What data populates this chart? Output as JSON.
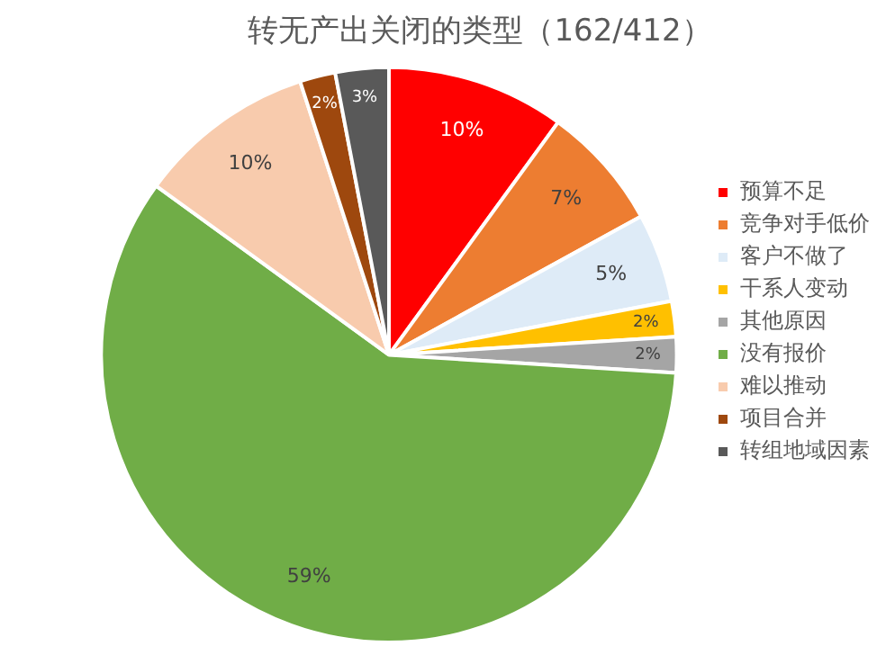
{
  "chart_data": {
    "type": "pie",
    "title": "转无产出关闭的类型（162/412）",
    "categories": [
      "预算不足",
      "竞争对手低价",
      "客户不做了",
      "干系人变动",
      "其他原因",
      "没有报价",
      "难以推动",
      "项目合并",
      "转组地域因素"
    ],
    "values": [
      10,
      7,
      5,
      2,
      2,
      59,
      10,
      2,
      3
    ],
    "colors": [
      "#ff0000",
      "#ed7d31",
      "#deebf7",
      "#ffc000",
      "#a5a5a5",
      "#70ad47",
      "#f8cbad",
      "#9e480e",
      "#595959"
    ],
    "value_labels": [
      "10%",
      "7%",
      "5%",
      "2%",
      "2%",
      "59%",
      "10%",
      "2%",
      "3%"
    ],
    "legend": "right"
  }
}
